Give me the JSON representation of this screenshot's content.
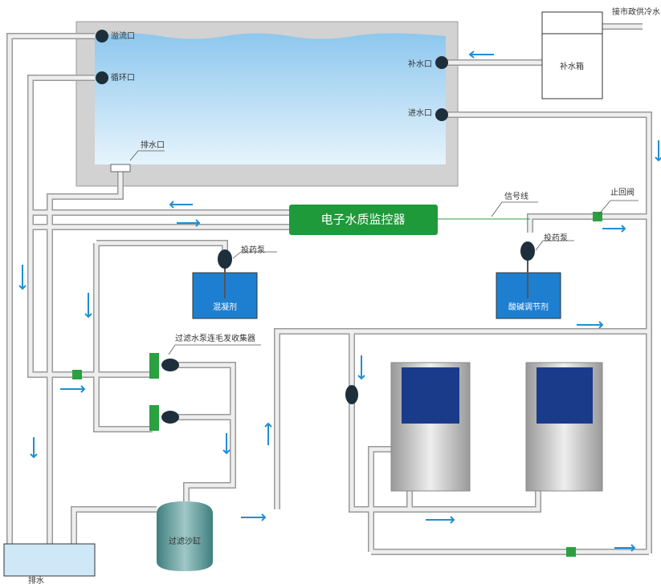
{
  "labels": {
    "municipal_water": "接市政供冷水",
    "makeup_tank": "补水箱",
    "overflow": "溢流口",
    "circulation": "循环口",
    "makeup_inlet": "补水口",
    "water_inlet": "进水口",
    "drain_outlet": "排水口",
    "monitor": "电子水质监控器",
    "signal_line": "信号线",
    "check_valve": "止回阀",
    "dosing_pump_left": "投药泵",
    "dosing_pump_right": "投药泵",
    "coagulant": "混凝剂",
    "ph_regulator": "酸碱调节剂",
    "filter_pump": "过滤水泵连毛发收集器",
    "sand_filter": "过滤沙缸",
    "drain": "排水"
  }
}
